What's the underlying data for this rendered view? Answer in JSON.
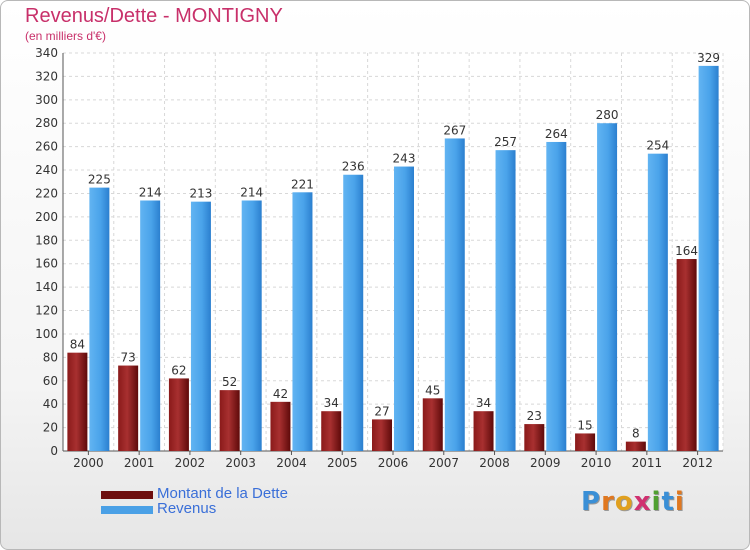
{
  "header": {
    "title": "Revenus/Dette - MONTIGNY",
    "subtitle": "(en milliers d'€)"
  },
  "legend": {
    "items": [
      {
        "label": "Montant de la Dette",
        "color": "#6e0e0e"
      },
      {
        "label": "Revenus",
        "color": "#4aa0e6"
      }
    ]
  },
  "logo": {
    "text": "Proxiti",
    "letters": [
      {
        "ch": "P",
        "color": "#3a8fd6"
      },
      {
        "ch": "r",
        "color": "#e07820"
      },
      {
        "ch": "o",
        "color": "#e0a020"
      },
      {
        "ch": "x",
        "color": "#d03070"
      },
      {
        "ch": "i",
        "color": "#50a030"
      },
      {
        "ch": "t",
        "color": "#3a8fd6"
      },
      {
        "ch": "i",
        "color": "#e07820"
      }
    ]
  },
  "chart_data": {
    "type": "bar",
    "title": "Revenus/Dette - MONTIGNY",
    "subtitle": "(en milliers d'€)",
    "categories": [
      "2000",
      "2001",
      "2002",
      "2003",
      "2004",
      "2005",
      "2006",
      "2007",
      "2008",
      "2009",
      "2010",
      "2011",
      "2012"
    ],
    "series": [
      {
        "name": "Montant de la Dette",
        "color": "#6e0e0e",
        "colorLight": "#b03a3a",
        "values": [
          84,
          73,
          62,
          52,
          42,
          34,
          27,
          45,
          34,
          23,
          15,
          8,
          164
        ]
      },
      {
        "name": "Revenus",
        "color": "#2f86d6",
        "colorLight": "#5db0f0",
        "values": [
          225,
          214,
          213,
          214,
          221,
          236,
          243,
          267,
          257,
          264,
          280,
          254,
          329
        ]
      }
    ],
    "ylim": [
      0,
      340
    ],
    "ytick_step": 20,
    "grid": true,
    "legend_position": "bottom-left"
  }
}
